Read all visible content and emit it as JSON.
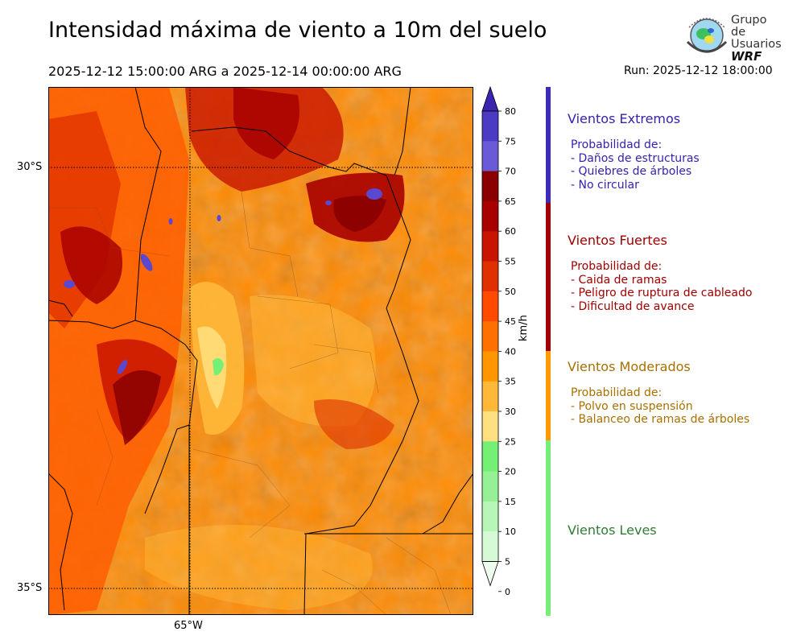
{
  "title": "Intensidad máxima de viento a 10m del suelo",
  "period": "2025-12-12 15:00:00 ARG  a  2025-12-14 00:00:00 ARG",
  "run": "Run: 2025-12-12 18:00:00",
  "logo": {
    "line1": "Grupo de",
    "line2": "Usuarios",
    "line3": "WRF",
    "icon": "wrf-globe-logo"
  },
  "map": {
    "lat_labels": [
      "30°S",
      "35°S"
    ],
    "lon_labels": [
      "65°W"
    ]
  },
  "colorbar": {
    "unit": "km/h",
    "ticks": [
      "80",
      "75",
      "70",
      "65",
      "60",
      "55",
      "50",
      "45",
      "40",
      "35",
      "30",
      "25",
      "20",
      "15",
      "10",
      "5",
      "0"
    ],
    "colors": [
      "#3b24b0",
      "#4a3ac4",
      "#6a5ad8",
      "#8a0000",
      "#a80000",
      "#c81400",
      "#e03000",
      "#ff4a00",
      "#ff7000",
      "#ff9600",
      "#ffb838",
      "#ffe080",
      "#74f074",
      "#96f096",
      "#b8f6b8",
      "#d6fad6",
      "#eefcee"
    ]
  },
  "categories": [
    {
      "title": "Vientos Extremos",
      "color": "#3422b0",
      "bar": "#3e2cb8",
      "desc": "Probabilidad de:\n- Daños de estructuras\n- Quiebres de árboles\n- No circular"
    },
    {
      "title": "Vientos Fuertes",
      "color": "#a00000",
      "bar": "#a00000",
      "desc": "Probabilidad de:\n- Caida de ramas\n- Peligro de ruptura de cableado\n- Dificultad de avance"
    },
    {
      "title": "Vientos Moderados",
      "color": "#a87000",
      "bar": "#ff9900",
      "desc": "Probabilidad de:\n- Polvo en suspensión\n- Balanceo de ramas de árboles"
    },
    {
      "title": "Vientos Leves",
      "color": "#2e7d32",
      "bar": "#77ee77",
      "desc": ""
    }
  ]
}
